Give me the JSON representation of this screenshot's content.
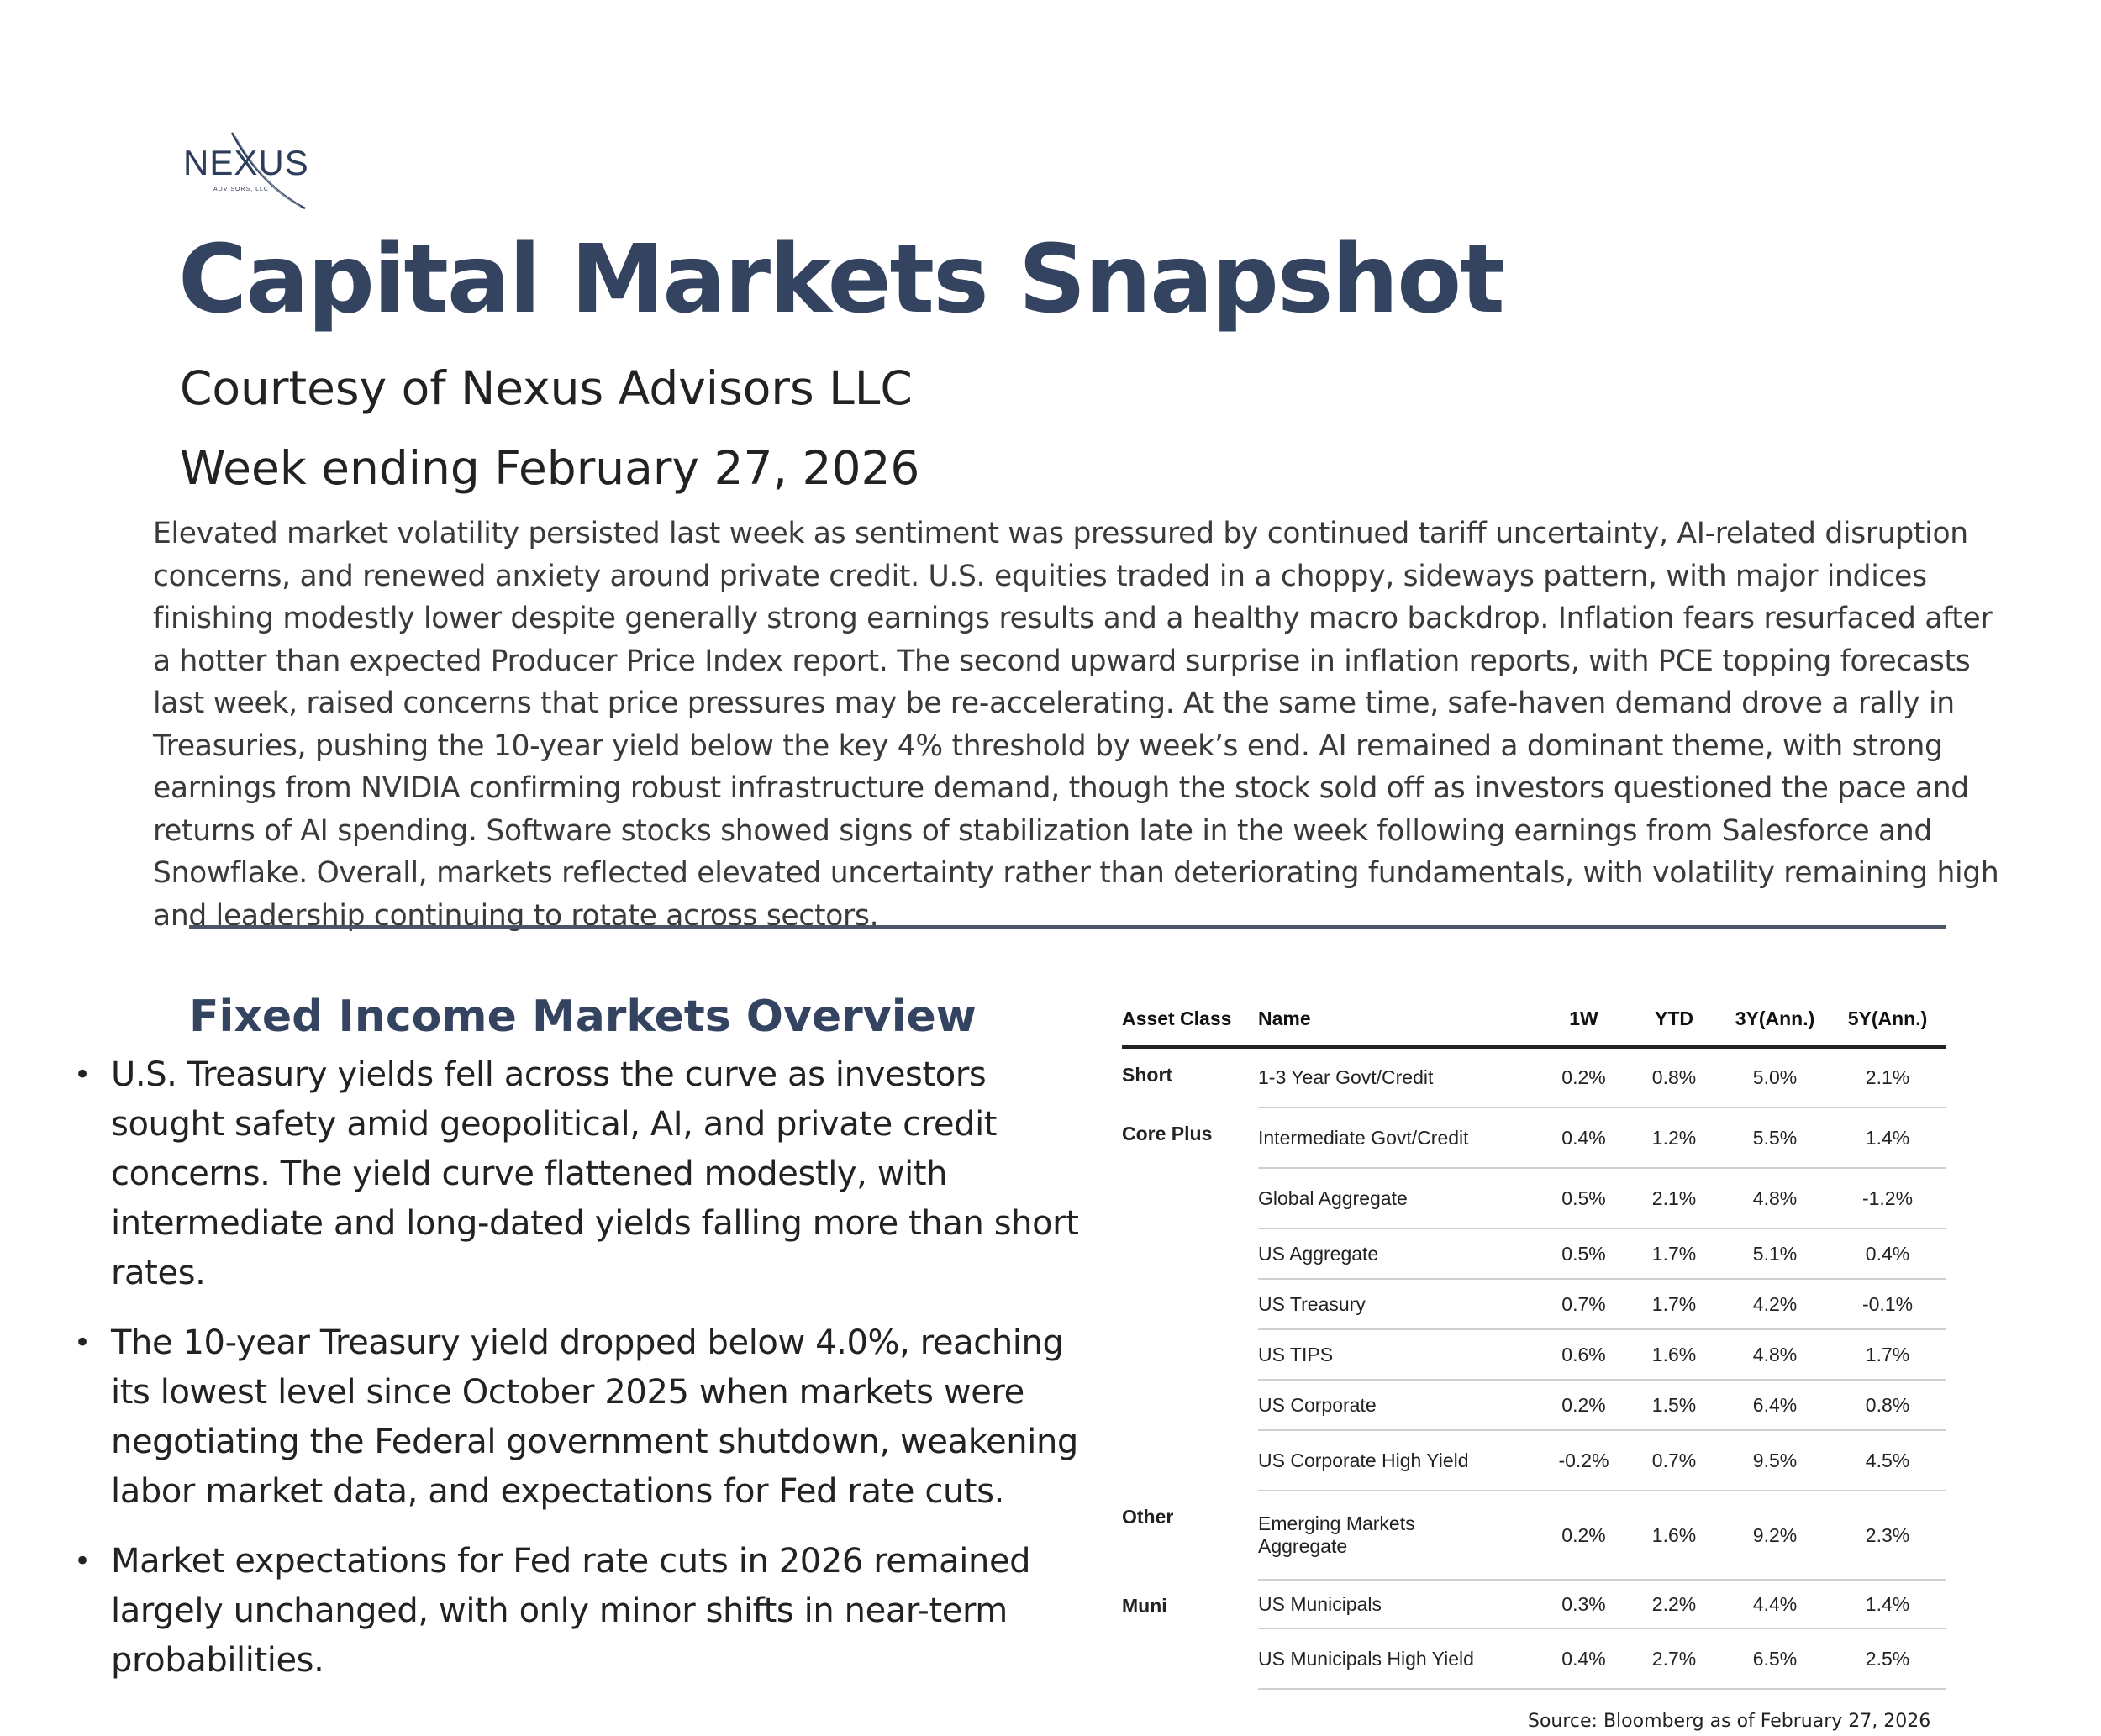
{
  "logo": {
    "wordmark": "NEXUS",
    "subtext": "ADVISORS, LLC",
    "colors": {
      "brand": "#2f3d5c"
    }
  },
  "header": {
    "title": "Capital Markets Snapshot",
    "courtesy": "Courtesy of Nexus Advisors LLC",
    "week": "Week ending February 27, 2026"
  },
  "intro": "Elevated market volatility persisted last week as sentiment was pressured by continued tariff uncertainty, AI-related disruption concerns, and renewed anxiety around private credit. U.S. equities traded in a choppy, sideways pattern, with major indices finishing modestly lower despite generally strong earnings results and a healthy macro backdrop. Inflation fears resurfaced after a hotter than expected Producer Price Index report.  The second upward surprise in inflation reports, with PCE topping forecasts last week, raised concerns that price pressures may be re-accelerating. At the same time, safe-haven demand drove a rally in Treasuries, pushing the 10-year yield below the key 4% threshold by week’s end. AI remained a dominant theme, with strong earnings from NVIDIA confirming robust infrastructure demand, though the stock sold off as investors questioned the pace and returns of AI spending. Software stocks showed signs of stabilization late in the week following earnings from Salesforce and Snowflake. Overall, markets reflected elevated uncertainty rather than deteriorating fundamentals, with volatility remaining high and leadership continuing to rotate across sectors.",
  "fixed_income": {
    "title": "Fixed Income Markets Overview",
    "bullets": [
      "U.S. Treasury yields fell across the curve as investors sought safety amid geopolitical, AI, and private credit concerns. The yield curve flattened modestly, with intermediate and long-dated yields falling more than short rates.",
      "The 10-year Treasury yield dropped below 4.0%, reaching its lowest level since October 2025 when markets were negotiating the Federal government shutdown, weakening labor market data, and expectations for Fed rate cuts.",
      "Market expectations for Fed rate cuts in 2026 remained largely unchanged, with only minor shifts in near-term probabilities."
    ]
  },
  "table": {
    "headers": [
      "Asset Class",
      "Name",
      "1W",
      "YTD",
      "3Y(Ann.)",
      "5Y(Ann.)"
    ],
    "rows": [
      {
        "asset_class": "Short",
        "name": "1-3 Year Govt/Credit",
        "w1": "0.2%",
        "ytd": "0.8%",
        "y3": "5.0%",
        "y5": "2.1%"
      },
      {
        "asset_class": "Core Plus",
        "name": "Intermediate Govt/Credit",
        "w1": "0.4%",
        "ytd": "1.2%",
        "y3": "5.5%",
        "y5": "1.4%"
      },
      {
        "asset_class": "",
        "name": "Global Aggregate",
        "w1": "0.5%",
        "ytd": "2.1%",
        "y3": "4.8%",
        "y5": "-1.2%"
      },
      {
        "asset_class": "",
        "name": "US Aggregate",
        "w1": "0.5%",
        "ytd": "1.7%",
        "y3": "5.1%",
        "y5": "0.4%"
      },
      {
        "asset_class": "",
        "name": "US Treasury",
        "w1": "0.7%",
        "ytd": "1.7%",
        "y3": "4.2%",
        "y5": "-0.1%"
      },
      {
        "asset_class": "",
        "name": "US TIPS",
        "w1": "0.6%",
        "ytd": "1.6%",
        "y3": "4.8%",
        "y5": "1.7%"
      },
      {
        "asset_class": "",
        "name": "US Corporate",
        "w1": "0.2%",
        "ytd": "1.5%",
        "y3": "6.4%",
        "y5": "0.8%"
      },
      {
        "asset_class": "",
        "name": "US Corporate High Yield",
        "w1": "-0.2%",
        "ytd": "0.7%",
        "y3": "9.5%",
        "y5": "4.5%"
      },
      {
        "asset_class": "Other",
        "name": "Emerging Markets Aggregate",
        "w1": "0.2%",
        "ytd": "1.6%",
        "y3": "9.2%",
        "y5": "2.3%"
      },
      {
        "asset_class": "Muni",
        "name": "US Municipals",
        "w1": "0.3%",
        "ytd": "2.2%",
        "y3": "4.4%",
        "y5": "1.4%"
      },
      {
        "asset_class": "",
        "name": "US Municipals High Yield",
        "w1": "0.4%",
        "ytd": "2.7%",
        "y3": "6.5%",
        "y5": "2.5%"
      }
    ],
    "source": "Source: Bloomberg as of February 27, 2026"
  }
}
